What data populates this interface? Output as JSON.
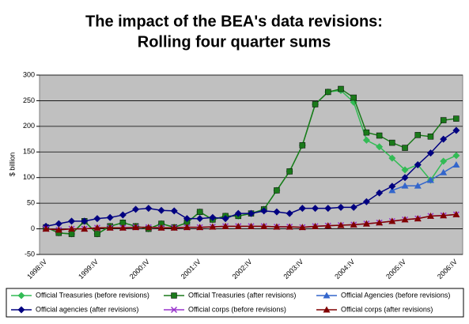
{
  "chart_data": {
    "type": "line",
    "title": "The impact of the BEA's data revisions:",
    "subtitle": "Rolling  four quarter sums",
    "y_label": "$ billion",
    "categories": [
      "1998:IV",
      null,
      null,
      null,
      "1999:IV",
      null,
      null,
      null,
      "2000:IV",
      null,
      null,
      null,
      "2001:IV",
      null,
      null,
      null,
      "2002:IV",
      null,
      null,
      null,
      "2003:IV",
      null,
      null,
      null,
      "2004:IV",
      null,
      null,
      null,
      "2005:IV",
      null,
      null,
      null,
      "2006:IV"
    ],
    "ylim": [
      -50,
      300
    ],
    "yticks": [
      -50,
      0,
      50,
      100,
      150,
      200,
      250,
      300
    ],
    "grid": true,
    "series": [
      {
        "name": "Official Treasuries (before revisions)",
        "color": "#33bb55",
        "marker": "diamond",
        "values": [
          3,
          -8,
          -10,
          15,
          -10,
          5,
          12,
          5,
          0,
          10,
          3,
          12,
          33,
          18,
          25,
          25,
          30,
          38,
          75,
          112,
          163,
          243,
          267,
          270,
          247,
          173,
          160,
          138,
          115,
          125,
          95,
          132,
          143
        ]
      },
      {
        "name": "Official Treasuries (after revisions)",
        "color": "#1a7a1a",
        "marker": "square",
        "values": [
          3,
          -8,
          -10,
          15,
          -10,
          5,
          12,
          5,
          0,
          10,
          3,
          12,
          33,
          18,
          25,
          25,
          30,
          38,
          75,
          112,
          163,
          243,
          267,
          273,
          256,
          188,
          182,
          168,
          158,
          183,
          180,
          212,
          215
        ]
      },
      {
        "name": "Official Agencies (before revisions)",
        "color": "#3366cc",
        "marker": "triangle",
        "values": [
          null,
          null,
          null,
          null,
          null,
          null,
          null,
          null,
          null,
          null,
          null,
          null,
          null,
          null,
          null,
          null,
          null,
          null,
          null,
          null,
          null,
          null,
          null,
          null,
          null,
          null,
          null,
          75,
          84,
          84,
          95,
          110,
          125
        ]
      },
      {
        "name": "Official agencies (after revisions)",
        "color": "#000080",
        "marker": "diamond",
        "values": [
          5,
          10,
          15,
          15,
          20,
          22,
          27,
          38,
          40,
          36,
          35,
          20,
          20,
          22,
          20,
          30,
          30,
          35,
          33,
          30,
          40,
          40,
          40,
          42,
          42,
          53,
          70,
          83,
          100,
          125,
          148,
          175,
          192
        ]
      },
      {
        "name": "Official corps (before revisions)",
        "color": "#9933cc",
        "marker": "x",
        "values": [
          0,
          -2,
          0,
          0,
          2,
          2,
          2,
          3,
          3,
          2,
          2,
          3,
          3,
          4,
          5,
          5,
          5,
          5,
          4,
          4,
          3,
          5,
          6,
          7,
          8,
          10,
          12,
          15,
          18,
          20,
          25,
          26,
          28
        ]
      },
      {
        "name": "Official corps (after revisions)",
        "color": "#800000",
        "marker": "triangle",
        "values": [
          0,
          -2,
          0,
          0,
          2,
          2,
          2,
          3,
          3,
          2,
          2,
          3,
          3,
          4,
          5,
          5,
          5,
          5,
          4,
          4,
          3,
          5,
          6,
          7,
          8,
          10,
          12,
          15,
          18,
          20,
          25,
          26,
          28
        ]
      }
    ]
  }
}
